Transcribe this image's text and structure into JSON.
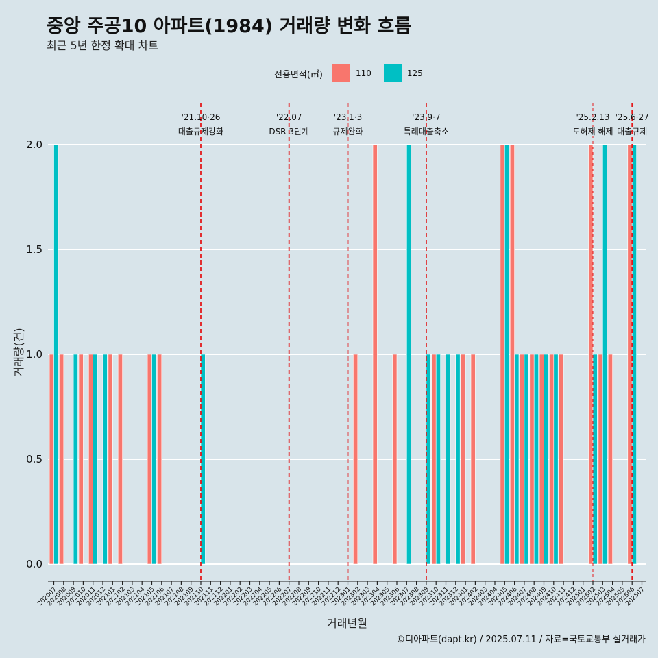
{
  "chart_data": {
    "type": "bar",
    "title": "중앙 주공10 아파트(1984) 거래량 변화 흐름",
    "subtitle": "최근 5년 한정 확대 차트",
    "xlabel": "거래년월",
    "ylabel": "거래량(건)",
    "ylim": [
      0,
      2
    ],
    "yticks": [
      "0.0",
      "0.5",
      "1.0",
      "1.5",
      "2.0"
    ],
    "grid": "horizontal",
    "legend_position": "top",
    "legend_title": "전용면적(㎡)",
    "caption": "©디아파트(dapt.kr) / 2025.07.11 / 자료=국토교통부 실거래가",
    "categories": [
      "202007",
      "202008",
      "202009",
      "202010",
      "202011",
      "202012",
      "202101",
      "202102",
      "202103",
      "202104",
      "202105",
      "202106",
      "202107",
      "202108",
      "202109",
      "202110",
      "202111",
      "202112",
      "202201",
      "202202",
      "202203",
      "202204",
      "202205",
      "202206",
      "202207",
      "202208",
      "202209",
      "202210",
      "202211",
      "202212",
      "202301",
      "202302",
      "202303",
      "202304",
      "202305",
      "202306",
      "202307",
      "202308",
      "202309",
      "202310",
      "202311",
      "202312",
      "202401",
      "202402",
      "202403",
      "202404",
      "202405",
      "202406",
      "202407",
      "202408",
      "202409",
      "202410",
      "202411",
      "202412",
      "202501",
      "202502",
      "202503",
      "202504",
      "202505",
      "202506",
      "202507"
    ],
    "series": [
      {
        "name": "110",
        "color": "#f8766d",
        "values": [
          1,
          1,
          0,
          1,
          1,
          0,
          1,
          1,
          0,
          0,
          1,
          1,
          0,
          0,
          0,
          0,
          0,
          0,
          0,
          0,
          0,
          0,
          0,
          0,
          0,
          0,
          0,
          0,
          0,
          0,
          0,
          1,
          0,
          2,
          0,
          1,
          0,
          0,
          0,
          1,
          0,
          0,
          1,
          1,
          0,
          0,
          2,
          2,
          1,
          1,
          1,
          1,
          1,
          0,
          0,
          2,
          1,
          1,
          0,
          2,
          0
        ]
      },
      {
        "name": "125",
        "color": "#00bfc4",
        "values": [
          2,
          0,
          1,
          0,
          1,
          1,
          0,
          0,
          0,
          0,
          1,
          0,
          0,
          0,
          0,
          1,
          0,
          0,
          0,
          0,
          0,
          0,
          0,
          0,
          0,
          0,
          0,
          0,
          0,
          0,
          0,
          0,
          0,
          0,
          0,
          0,
          2,
          0,
          1,
          1,
          1,
          1,
          0,
          0,
          0,
          0,
          2,
          1,
          1,
          1,
          1,
          1,
          0,
          0,
          0,
          1,
          2,
          0,
          0,
          2,
          0
        ]
      }
    ],
    "annotations": [
      {
        "at": "202110",
        "date": "'21.10·26",
        "text": "대출규제강화",
        "style": "dashed"
      },
      {
        "at": "202207",
        "date": "'22.07",
        "text": "DSR 3단계",
        "style": "dashed"
      },
      {
        "at": "202301",
        "date": "'23.1·3",
        "text": "규제완화",
        "style": "dashed"
      },
      {
        "at": "202309",
        "date": "'23.9·7",
        "text": "특례대출축소",
        "style": "dashed"
      },
      {
        "at": "202502",
        "date": "'25.2.13",
        "text": "토허제 해제",
        "style": "dotted"
      },
      {
        "at": "202506",
        "date": "'25.6·27",
        "text": "대출규제",
        "style": "dashed"
      }
    ]
  }
}
